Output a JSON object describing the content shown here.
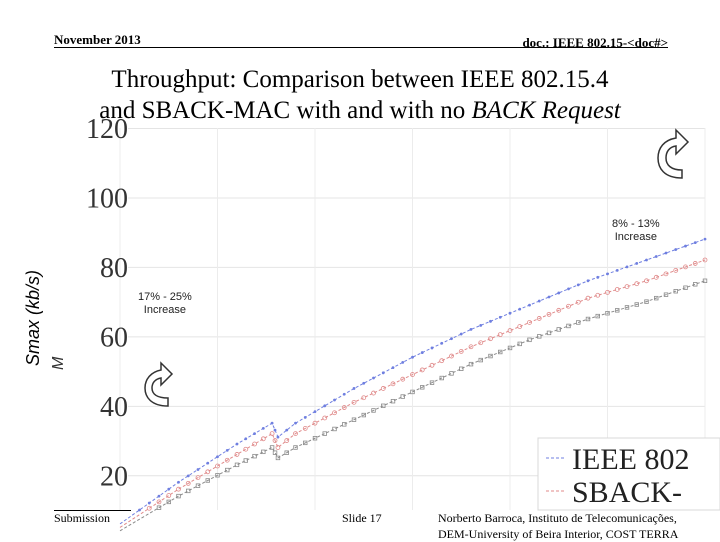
{
  "header": {
    "date": "November 2013",
    "doc": "doc.: IEEE 802.15-<doc#>"
  },
  "slide_title": {
    "line1": "Throughput: Comparison between IEEE 802.15.4",
    "line2_prefix": "and SBACK-MAC with and with no ",
    "line2_italic": "BACK Request"
  },
  "annotations": {
    "upper": {
      "line1": "8% - 13%",
      "line2": "Increase"
    },
    "lower": {
      "line1": "17% - 25%",
      "line2": "Increase"
    }
  },
  "footer": {
    "submission": "Submission",
    "slide": "Slide 17",
    "author_line1": "Norberto Barroca, Instituto de Telecomunicações,",
    "author_line2": "DEM-University of Beira Interior, COST TERRA"
  },
  "icons": {
    "upper_arrow": "curved-up-arrow-icon",
    "lower_arrow": "curved-up-arrow-icon"
  },
  "chart_data": {
    "type": "line",
    "title": "",
    "ylabel": "Smax (kb/s)",
    "ylabel_fragment": "M",
    "xlabel": "",
    "ylim": [
      10,
      120
    ],
    "yticks": [
      20,
      40,
      60,
      80,
      100,
      120
    ],
    "grid": true,
    "legend_position": "bottom-right",
    "legend_labels": [
      "IEEE 802",
      "SBACK-"
    ],
    "series": [
      {
        "name": "IEEE 802",
        "color": "#6f7fe0",
        "points": [
          [
            0,
            6
          ],
          [
            0.1,
            18
          ],
          [
            0.2,
            29
          ],
          [
            0.26,
            35
          ],
          [
            0.27,
            31
          ],
          [
            0.3,
            35
          ],
          [
            0.4,
            45
          ],
          [
            0.5,
            54
          ],
          [
            0.6,
            62
          ],
          [
            0.7,
            69
          ],
          [
            0.8,
            76
          ],
          [
            0.9,
            82
          ],
          [
            1.0,
            88
          ]
        ]
      },
      {
        "name": "SBACK-",
        "color": "#e08a8a",
        "points": [
          [
            0,
            5
          ],
          [
            0.1,
            16
          ],
          [
            0.2,
            26
          ],
          [
            0.26,
            32
          ],
          [
            0.27,
            28
          ],
          [
            0.3,
            32
          ],
          [
            0.4,
            41
          ],
          [
            0.5,
            49
          ],
          [
            0.6,
            57
          ],
          [
            0.7,
            64
          ],
          [
            0.8,
            71
          ],
          [
            0.9,
            76
          ],
          [
            1.0,
            82
          ]
        ]
      },
      {
        "name": "",
        "color": "#8a8a8a",
        "points": [
          [
            0,
            4
          ],
          [
            0.1,
            14
          ],
          [
            0.2,
            23
          ],
          [
            0.26,
            28
          ],
          [
            0.27,
            25
          ],
          [
            0.3,
            28
          ],
          [
            0.4,
            36
          ],
          [
            0.5,
            44
          ],
          [
            0.6,
            52
          ],
          [
            0.7,
            59
          ],
          [
            0.8,
            65
          ],
          [
            0.9,
            70
          ],
          [
            1.0,
            76
          ]
        ]
      }
    ]
  }
}
